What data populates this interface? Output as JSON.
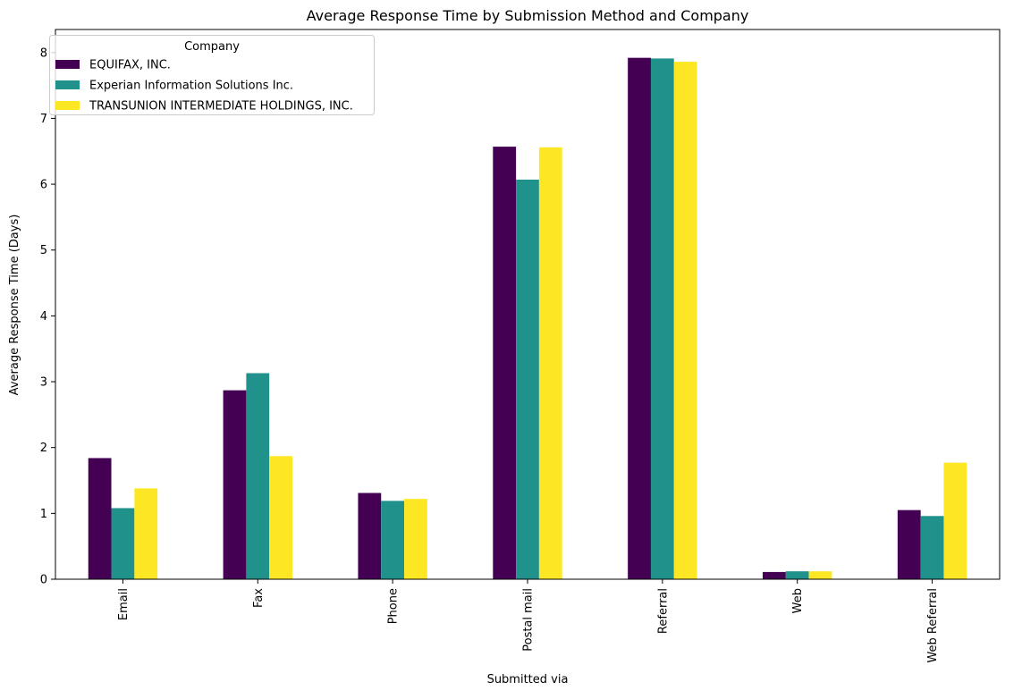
{
  "chart_data": {
    "type": "bar",
    "title": "Average Response Time by Submission Method and Company",
    "xlabel": "Submitted via",
    "ylabel": "Average Response Time (Days)",
    "categories": [
      "Email",
      "Fax",
      "Phone",
      "Postal mail",
      "Referral",
      "Web",
      "Web Referral"
    ],
    "ylim": [
      0,
      8.35
    ],
    "yticks": [
      0,
      1,
      2,
      3,
      4,
      5,
      6,
      7,
      8
    ],
    "grid": false,
    "legend": {
      "title": "Company",
      "placement": "top-left"
    },
    "series": [
      {
        "name": "EQUIFAX, INC.",
        "color": "#440154",
        "values": [
          1.84,
          2.87,
          1.31,
          6.57,
          7.92,
          0.11,
          1.05
        ]
      },
      {
        "name": "Experian Information Solutions Inc.",
        "color": "#21918c",
        "values": [
          1.08,
          3.13,
          1.19,
          6.07,
          7.91,
          0.12,
          0.96
        ]
      },
      {
        "name": "TRANSUNION INTERMEDIATE HOLDINGS, INC.",
        "color": "#fde725",
        "values": [
          1.38,
          1.87,
          1.22,
          6.56,
          7.86,
          0.12,
          1.77
        ]
      }
    ]
  }
}
